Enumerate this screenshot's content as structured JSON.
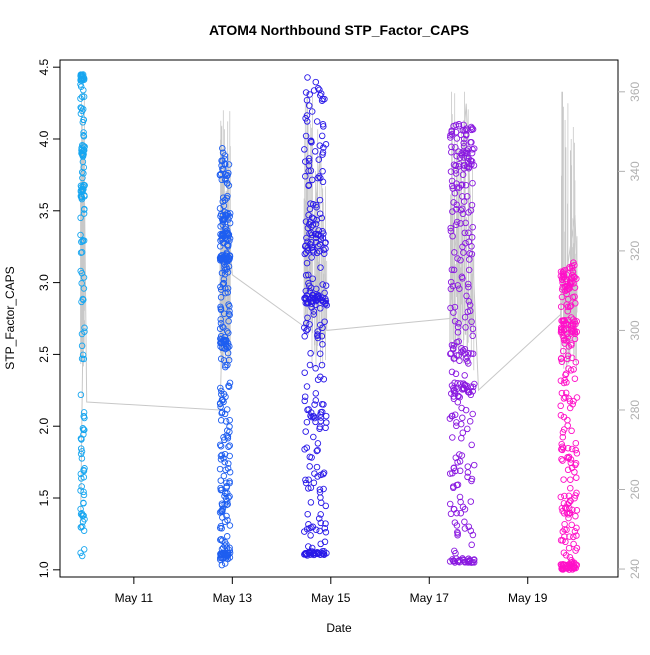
{
  "chart_data": {
    "type": "scatter",
    "title": "ATOM4 Northbound STP_Factor_CAPS",
    "xlabel": "Date",
    "ylabel": "STP_Factor_CAPS",
    "x_ticks": [
      {
        "date": "2024-05-11",
        "label": "May 11"
      },
      {
        "date": "2024-05-13",
        "label": "May 13"
      },
      {
        "date": "2024-05-15",
        "label": "May 15"
      },
      {
        "date": "2024-05-17",
        "label": "May 17"
      },
      {
        "date": "2024-05-19",
        "label": "May 19"
      }
    ],
    "xlim": [
      "2024-05-09T12:00",
      "2024-05-20T20:00"
    ],
    "ylim": [
      0.95,
      4.55
    ],
    "y_ticks": [
      {
        "value": 1.0,
        "label": "1.0"
      },
      {
        "value": 1.5,
        "label": "1.5"
      },
      {
        "value": 2.0,
        "label": "2.0"
      },
      {
        "value": 2.5,
        "label": "2.5"
      },
      {
        "value": 3.0,
        "label": "3.0"
      },
      {
        "value": 3.5,
        "label": "3.5"
      },
      {
        "value": 4.0,
        "label": "4.0"
      },
      {
        "value": 4.5,
        "label": "4.5"
      }
    ],
    "y2lim": [
      238,
      368
    ],
    "y2_ticks": [
      {
        "value": 240,
        "label": "240"
      },
      {
        "value": 260,
        "label": "260"
      },
      {
        "value": 280,
        "label": "280"
      },
      {
        "value": 300,
        "label": "300"
      },
      {
        "value": 320,
        "label": "320"
      },
      {
        "value": 340,
        "label": "340"
      },
      {
        "value": 360,
        "label": "360"
      }
    ],
    "grid": false,
    "legend": "none",
    "point_color_gradient": [
      "#17a6f0",
      "#1e5ef0",
      "#2a1ae8",
      "#8a1ae0",
      "#ff10c8"
    ],
    "secondary_line_color": "#c8c8c8",
    "clusters": [
      {
        "start": "2024-05-09T22:00",
        "end": "2024-05-10T00:00",
        "color": "#17a6f0",
        "ymin": 1.07,
        "ymax": 4.45,
        "count": 150,
        "dense": [
          [
            4.4,
            4.45
          ],
          [
            3.88,
            3.96
          ],
          [
            3.58,
            3.68
          ],
          [
            1.9,
            2.0
          ]
        ]
      },
      {
        "start": "2024-05-12T18:00",
        "end": "2024-05-12T23:00",
        "color": "#1e5ef0",
        "ymin": 1.03,
        "ymax": 3.94,
        "count": 320,
        "dense": [
          [
            3.3,
            3.5
          ],
          [
            3.15,
            3.2
          ],
          [
            2.55,
            2.6
          ],
          [
            1.08,
            1.12
          ]
        ]
      },
      {
        "start": "2024-05-14T11:00",
        "end": "2024-05-14T22:00",
        "color": "#2a1ae8",
        "ymin": 1.07,
        "ymax": 4.43,
        "count": 300,
        "dense": [
          [
            3.2,
            3.35
          ],
          [
            2.85,
            2.92
          ],
          [
            1.1,
            1.13
          ]
        ]
      },
      {
        "start": "2024-05-17T10:00",
        "end": "2024-05-17T22:00",
        "color": "#8a1ae0",
        "ymin": 1.04,
        "ymax": 4.11,
        "count": 300,
        "dense": [
          [
            3.8,
            3.95
          ],
          [
            4.0,
            4.1
          ],
          [
            2.45,
            2.55
          ],
          [
            2.2,
            2.3
          ],
          [
            1.05,
            1.08
          ]
        ]
      },
      {
        "start": "2024-05-19T16:00",
        "end": "2024-05-20T00:00",
        "color": "#ff10c8",
        "ymin": 1.0,
        "ymax": 3.14,
        "count": 260,
        "dense": [
          [
            2.6,
            2.75
          ],
          [
            2.95,
            3.1
          ],
          [
            1.0,
            1.04
          ]
        ]
      }
    ],
    "secondary_series": {
      "axis": "right",
      "points": [
        {
          "x": "2024-05-09T22:00",
          "y": 250
        },
        {
          "x": "2024-05-10T00:00",
          "y": 332
        },
        {
          "x": "2024-05-10T01:00",
          "y": 282
        },
        {
          "x": "2024-05-12T18:00",
          "y": 280
        },
        {
          "x": "2024-05-12T21:00",
          "y": 335
        },
        {
          "x": "2024-05-13T00:00",
          "y": 314
        },
        {
          "x": "2024-05-14T11:00",
          "y": 301
        },
        {
          "x": "2024-05-14T19:00",
          "y": 345
        },
        {
          "x": "2024-05-14T22:00",
          "y": 300
        },
        {
          "x": "2024-05-17T10:00",
          "y": 303
        },
        {
          "x": "2024-05-17T18:00",
          "y": 357
        },
        {
          "x": "2024-05-18T00:00",
          "y": 285
        },
        {
          "x": "2024-05-19T16:00",
          "y": 304
        },
        {
          "x": "2024-05-19T23:00",
          "y": 329
        },
        {
          "x": "2024-05-20T00:00",
          "y": 316
        }
      ]
    }
  }
}
